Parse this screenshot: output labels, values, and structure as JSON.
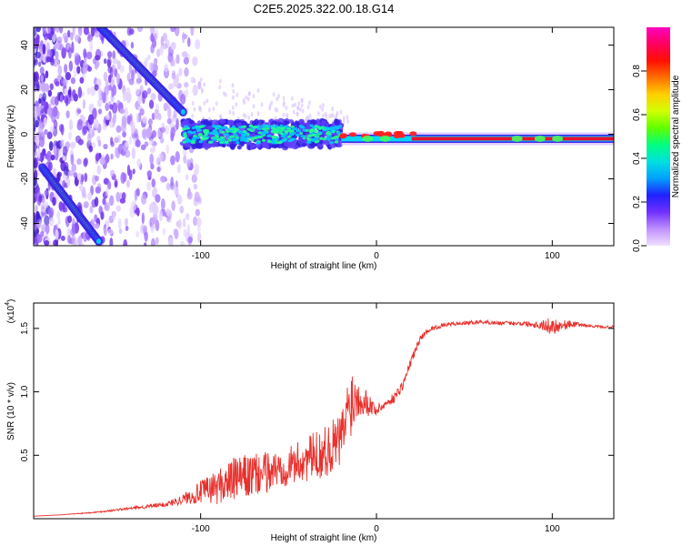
{
  "title": "C2E5.2025.322.00.18.G14",
  "colors": {
    "snr_line": "#e8302c",
    "frame": "#000000",
    "scatter": "#8a3cf0",
    "track_core": "#00c8ff",
    "flat_core": "#e8102c"
  },
  "chart_data": [
    {
      "type": "heatmap",
      "name": "spectrogram",
      "xlabel": "Height of straight line (km)",
      "ylabel": "Frequency (Hz)",
      "xlim": [
        -195,
        135
      ],
      "ylim": [
        -50,
        48
      ],
      "xticks": [
        -100,
        0,
        100
      ],
      "xtick_labels": [
        "-100",
        "0",
        "100"
      ],
      "yticks": [
        -40,
        -20,
        0,
        20,
        40
      ],
      "ytick_labels": [
        "-40",
        "-20",
        "0",
        "20",
        "40"
      ],
      "colorbar": {
        "label": "Normalized spectral amplitude",
        "range": [
          0,
          1
        ],
        "ticks": [
          0.0,
          0.2,
          0.4,
          0.6,
          0.8
        ],
        "tick_labels": [
          "0.0",
          "0.2",
          "0.4",
          "0.6",
          "0.8"
        ],
        "stops": [
          "#f0e0ff",
          "#c090ff",
          "#7030ff",
          "#2020ff",
          "#00a0ff",
          "#00e0e0",
          "#00ff80",
          "#60ff00",
          "#d0ff00",
          "#ffd000",
          "#ff7000",
          "#ff1000",
          "#ff0060",
          "#ff00c0"
        ]
      },
      "features": {
        "diagonal_track": {
          "start": [
            -157,
            48
          ],
          "end": [
            -110,
            10
          ]
        },
        "lower_track": {
          "start": [
            -190,
            -15
          ],
          "end": [
            -158,
            -48
          ]
        },
        "broad_band": {
          "x_range": [
            -110,
            -20
          ],
          "center_hz": 0,
          "halfwidth_hz": 6
        },
        "flat_line": {
          "x_range": [
            -20,
            135
          ],
          "center_hz": -2
        }
      }
    },
    {
      "type": "line",
      "name": "snr",
      "xlabel": "Height of straight line (km)",
      "ylabel": "SNR (10 * v/v)",
      "exponent_label": "(x10",
      "exponent_sup": "4",
      "exponent_close": ")",
      "xlim": [
        -195,
        135
      ],
      "ylim": [
        0,
        17000
      ],
      "xticks": [
        -100,
        0,
        100
      ],
      "xtick_labels": [
        "-100",
        "0",
        "100"
      ],
      "yticks": [
        5000,
        10000,
        15000
      ],
      "ytick_labels": [
        "0.5",
        "1.0",
        "1.5"
      ],
      "series": [
        {
          "name": "SNR",
          "x": [
            -195,
            -180,
            -160,
            -140,
            -120,
            -110,
            -100,
            -90,
            -80,
            -70,
            -60,
            -50,
            -40,
            -30,
            -20,
            -15,
            -10,
            -5,
            0,
            5,
            10,
            15,
            20,
            25,
            30,
            35,
            40,
            50,
            60,
            70,
            80,
            90,
            95,
            100,
            105,
            110,
            115,
            120,
            130,
            135
          ],
          "y": [
            200,
            300,
            500,
            800,
            1100,
            1500,
            2000,
            2400,
            3000,
            3200,
            3600,
            4000,
            4500,
            5000,
            6000,
            9000,
            9500,
            9000,
            8500,
            9000,
            9500,
            10500,
            12500,
            14200,
            14900,
            15100,
            15300,
            15400,
            15500,
            15400,
            15400,
            15300,
            15200,
            15100,
            15200,
            15300,
            15300,
            15200,
            15100,
            15100
          ],
          "spread": [
            0,
            0,
            100,
            200,
            400,
            800,
            1800,
            2800,
            3500,
            3500,
            3200,
            3000,
            3600,
            4000,
            4500,
            6000,
            3000,
            2000,
            1000,
            600,
            800,
            800,
            700,
            500,
            400,
            300,
            300,
            300,
            300,
            300,
            300,
            500,
            900,
            1400,
            900,
            600,
            300,
            200,
            200,
            200
          ]
        }
      ]
    }
  ]
}
